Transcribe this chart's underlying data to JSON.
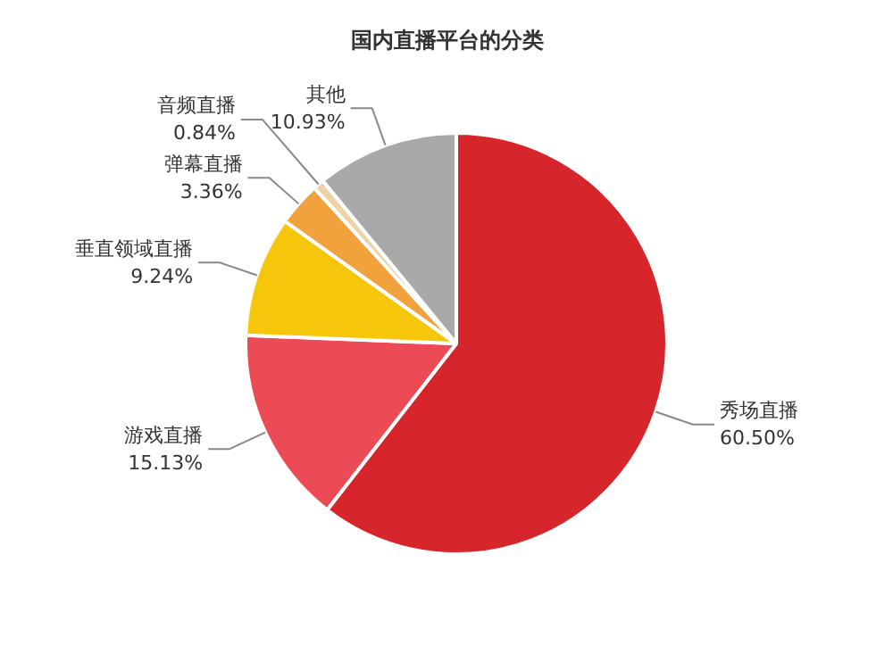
{
  "chart_data": {
    "type": "pie",
    "title": "国内直播平台的分类",
    "categories": [
      "秀场直播",
      "游戏直播",
      "垂直领域直播",
      "弹幕直播",
      "音频直播",
      "其他"
    ],
    "values": [
      60.5,
      15.13,
      9.24,
      3.36,
      0.84,
      10.93
    ],
    "value_labels": [
      "60.50%",
      "15.13%",
      "9.24%",
      "3.36%",
      "0.84%",
      "10.93%"
    ],
    "colors": [
      "#d7262b",
      "#ec4b55",
      "#f5c60a",
      "#f2a23c",
      "#ecd3a8",
      "#a9a9a9"
    ]
  }
}
